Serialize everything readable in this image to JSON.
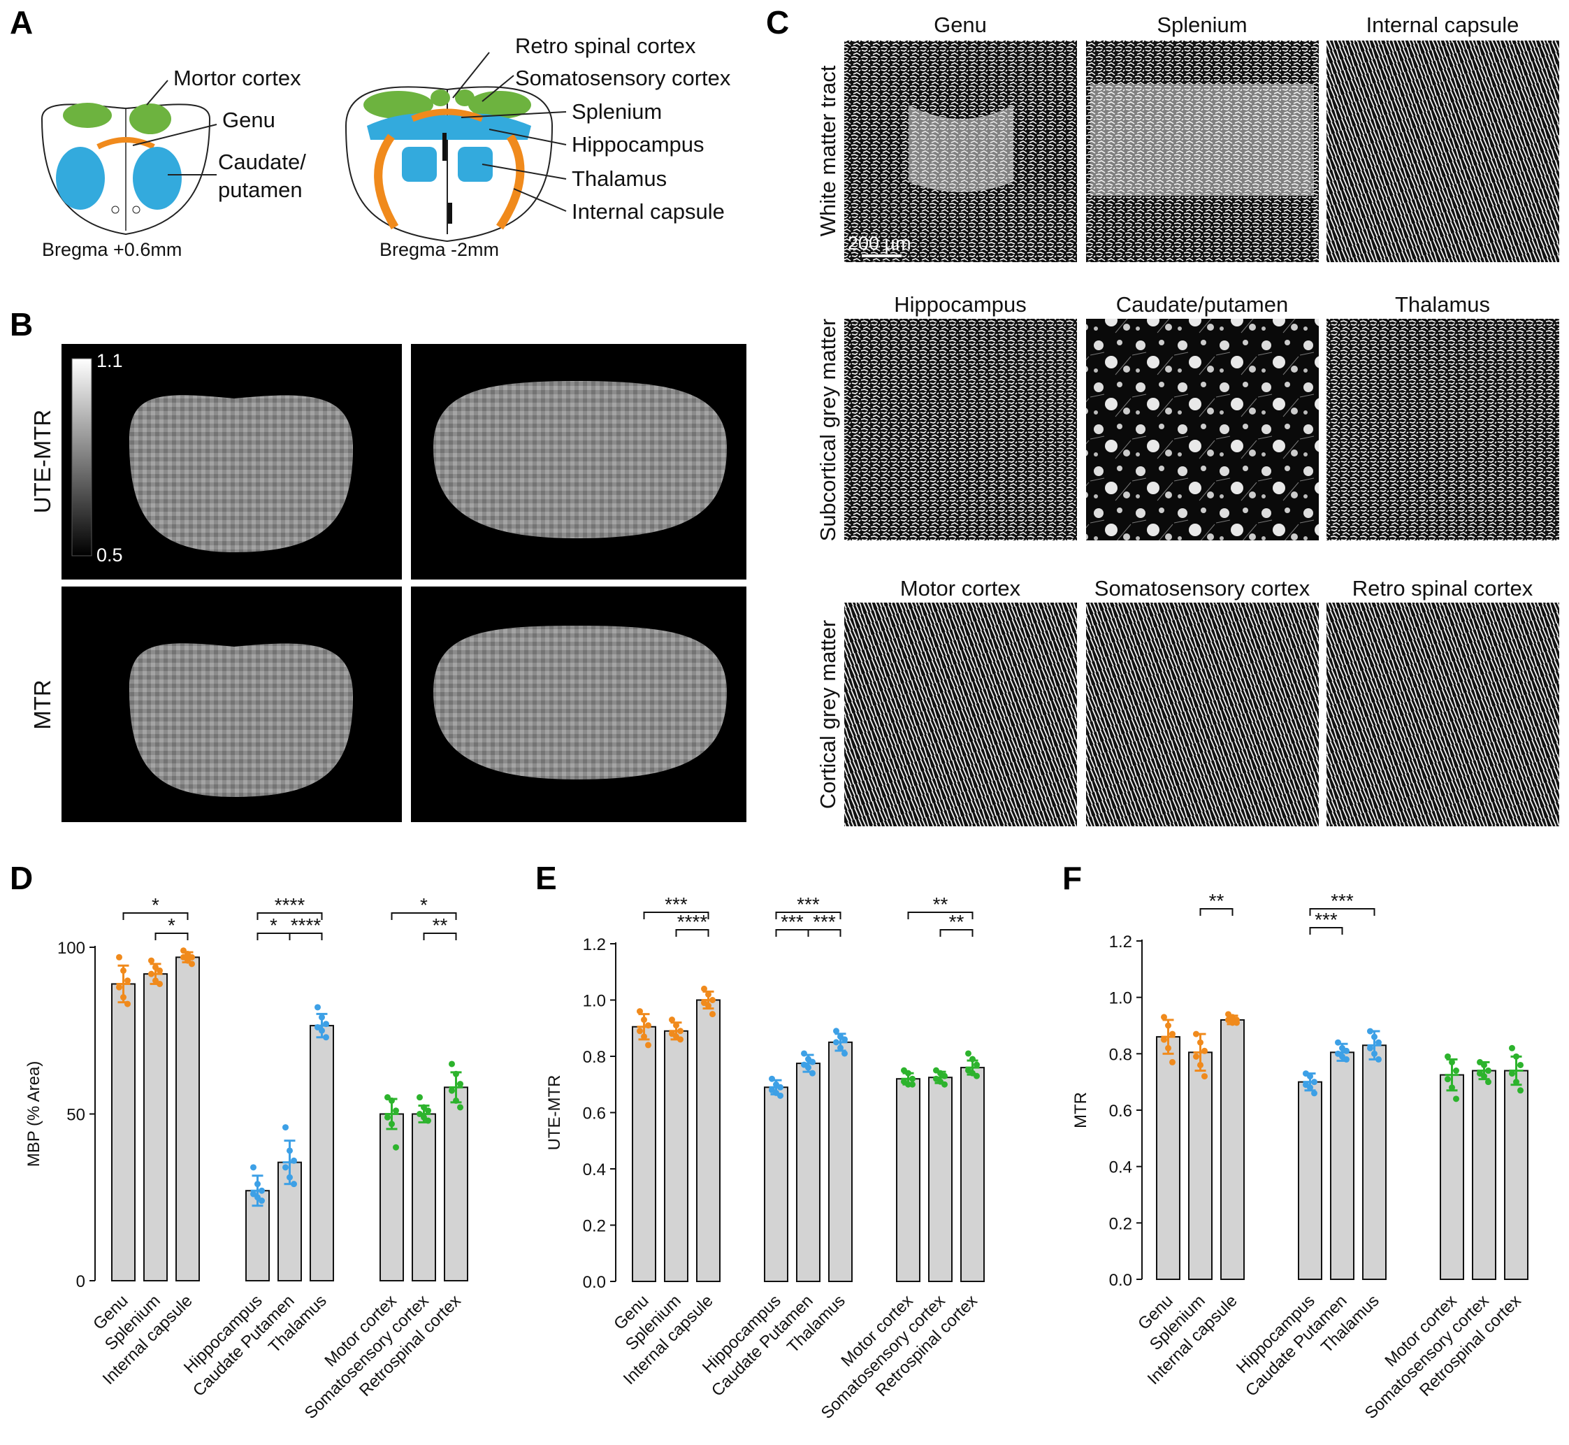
{
  "panel_labels": [
    "A",
    "B",
    "C",
    "D",
    "E",
    "F"
  ],
  "panel_a": {
    "left_section_labels": [
      "Mortor cortex",
      "Genu",
      "Caudate/",
      "putamen"
    ],
    "left_caption": "Bregma +0.6mm",
    "right_section_labels": [
      "Retro spinal cortex",
      "Somatosensory cortex",
      "Splenium",
      "Hippocampus",
      "Thalamus",
      "Internal capsule"
    ],
    "right_caption": "Bregma -2mm",
    "colors": {
      "cortex": "#6db33f",
      "grey": "#33aadd",
      "white": "#f08a1c"
    }
  },
  "panel_b": {
    "row_labels": [
      "UTE-MTR",
      "MTR"
    ],
    "colorbar_max": "1.1",
    "colorbar_min": "0.5"
  },
  "panel_c": {
    "row_labels": [
      "White matter tract",
      "Subcortical grey matter",
      "Cortical grey matter"
    ],
    "tiles": [
      [
        "Genu",
        "Splenium",
        "Internal capsule"
      ],
      [
        "Hippocampus",
        "Caudate/putamen",
        "Thalamus"
      ],
      [
        "Motor cortex",
        "Somatosensory cortex",
        "Retro spinal cortex"
      ]
    ],
    "scale_bar": "200 µm"
  },
  "chart_data": [
    {
      "panel": "D",
      "type": "bar",
      "ylabel": "MBP (% Area)",
      "ylim": [
        0,
        100
      ],
      "yticks": [
        "0",
        "50",
        "100"
      ],
      "categories": [
        "Genu",
        "Splenium",
        "Internal capsule",
        "Hippocampus",
        "Caudate Putamen",
        "Thalamus",
        "Motor cortex",
        "Somatosensory cortex",
        "Retrospinal cortex"
      ],
      "values": [
        89,
        92,
        97,
        27,
        35.5,
        76.5,
        50,
        50,
        58
      ],
      "errors": [
        5.5,
        3,
        1.5,
        4.5,
        6.5,
        3.5,
        4.5,
        2.5,
        4.5
      ],
      "group_colors": [
        "#f08a1c",
        "#f08a1c",
        "#f08a1c",
        "#3da0e6",
        "#3da0e6",
        "#3da0e6",
        "#2db32d",
        "#2db32d",
        "#2db32d"
      ],
      "points": [
        [
          97,
          93,
          90,
          88,
          85,
          83
        ],
        [
          96,
          94,
          93,
          92,
          90,
          89
        ],
        [
          99,
          98,
          97,
          97,
          96,
          95
        ],
        [
          34,
          29,
          27,
          26,
          25,
          24
        ],
        [
          46,
          39,
          36,
          34,
          31,
          29
        ],
        [
          82,
          79,
          77,
          76,
          75,
          73
        ],
        [
          55,
          54,
          51,
          49,
          47,
          40
        ],
        [
          55,
          52,
          51,
          50,
          49,
          48
        ],
        [
          65,
          62,
          59,
          57,
          54,
          52
        ]
      ],
      "significance": [
        {
          "from": 0,
          "to": 2,
          "label": "*"
        },
        {
          "from": 1,
          "to": 2,
          "label": "*"
        },
        {
          "from": 3,
          "to": 5,
          "label": "****"
        },
        {
          "from": 3,
          "to": 4,
          "label": "*"
        },
        {
          "from": 4,
          "to": 5,
          "label": "****"
        },
        {
          "from": 6,
          "to": 8,
          "label": "*"
        },
        {
          "from": 7,
          "to": 8,
          "label": "**"
        }
      ]
    },
    {
      "panel": "E",
      "type": "bar",
      "ylabel": "UTE-MTR",
      "ylim": [
        0,
        1.2
      ],
      "yticks": [
        "0.0",
        "0.2",
        "0.4",
        "0.6",
        "0.8",
        "1.0",
        "1.2"
      ],
      "categories": [
        "Genu",
        "Splenium",
        "Internal capsule",
        "Hippocampus",
        "Caudate Putamen",
        "Thalamus",
        "Motor cortex",
        "Somatosensory cortex",
        "Retrospinal cortex"
      ],
      "values": [
        0.905,
        0.89,
        1.0,
        0.69,
        0.775,
        0.85,
        0.72,
        0.725,
        0.76
      ],
      "errors": [
        0.045,
        0.03,
        0.03,
        0.025,
        0.03,
        0.03,
        0.02,
        0.02,
        0.025
      ],
      "group_colors": [
        "#f08a1c",
        "#f08a1c",
        "#f08a1c",
        "#3da0e6",
        "#3da0e6",
        "#3da0e6",
        "#2db32d",
        "#2db32d",
        "#2db32d"
      ],
      "points": [
        [
          0.96,
          0.93,
          0.91,
          0.89,
          0.87,
          0.84
        ],
        [
          0.93,
          0.91,
          0.89,
          0.88,
          0.87,
          0.86
        ],
        [
          1.04,
          1.02,
          1.0,
          0.99,
          0.98,
          0.95
        ],
        [
          0.72,
          0.7,
          0.69,
          0.68,
          0.67,
          0.66
        ],
        [
          0.81,
          0.79,
          0.78,
          0.77,
          0.76,
          0.74
        ],
        [
          0.89,
          0.87,
          0.86,
          0.85,
          0.83,
          0.81
        ],
        [
          0.75,
          0.74,
          0.72,
          0.71,
          0.7,
          0.7
        ],
        [
          0.75,
          0.74,
          0.73,
          0.72,
          0.71,
          0.7
        ],
        [
          0.81,
          0.79,
          0.77,
          0.75,
          0.74,
          0.73
        ]
      ],
      "significance": [
        {
          "from": 0,
          "to": 2,
          "label": "***"
        },
        {
          "from": 1,
          "to": 2,
          "label": "****"
        },
        {
          "from": 3,
          "to": 5,
          "label": "***"
        },
        {
          "from": 3,
          "to": 4,
          "label": "***"
        },
        {
          "from": 4,
          "to": 5,
          "label": "***"
        },
        {
          "from": 6,
          "to": 8,
          "label": "**"
        },
        {
          "from": 7,
          "to": 8,
          "label": "**"
        }
      ]
    },
    {
      "panel": "F",
      "type": "bar",
      "ylabel": "MTR",
      "ylim": [
        0,
        1.2
      ],
      "yticks": [
        "0.0",
        "0.2",
        "0.4",
        "0.6",
        "0.8",
        "1.0",
        "1.2"
      ],
      "categories": [
        "Genu",
        "Splenium",
        "Internal capsule",
        "Hippocampus",
        "Caudate Putamen",
        "Thalamus",
        "Motor cortex",
        "Somatosensory cortex",
        "Retrospinal cortex"
      ],
      "values": [
        0.86,
        0.805,
        0.92,
        0.7,
        0.805,
        0.83,
        0.725,
        0.74,
        0.74
      ],
      "errors": [
        0.06,
        0.065,
        0.015,
        0.03,
        0.03,
        0.05,
        0.055,
        0.03,
        0.05
      ],
      "group_colors": [
        "#f08a1c",
        "#f08a1c",
        "#f08a1c",
        "#3da0e6",
        "#3da0e6",
        "#3da0e6",
        "#2db32d",
        "#2db32d",
        "#2db32d"
      ],
      "points": [
        [
          0.93,
          0.9,
          0.87,
          0.85,
          0.82,
          0.77
        ],
        [
          0.87,
          0.84,
          0.81,
          0.79,
          0.76,
          0.72
        ],
        [
          0.94,
          0.93,
          0.92,
          0.92,
          0.91,
          0.91
        ],
        [
          0.73,
          0.72,
          0.7,
          0.69,
          0.68,
          0.66
        ],
        [
          0.84,
          0.82,
          0.81,
          0.8,
          0.79,
          0.78
        ],
        [
          0.88,
          0.86,
          0.84,
          0.82,
          0.8,
          0.78
        ],
        [
          0.79,
          0.77,
          0.74,
          0.71,
          0.68,
          0.64
        ],
        [
          0.77,
          0.76,
          0.74,
          0.73,
          0.72,
          0.7
        ],
        [
          0.82,
          0.79,
          0.76,
          0.73,
          0.7,
          0.67
        ]
      ],
      "significance": [
        {
          "from": 1,
          "to": 2,
          "label": "**"
        },
        {
          "from": 3,
          "to": 5,
          "label": "***"
        },
        {
          "from": 3,
          "to": 4,
          "label": "***"
        }
      ]
    }
  ]
}
